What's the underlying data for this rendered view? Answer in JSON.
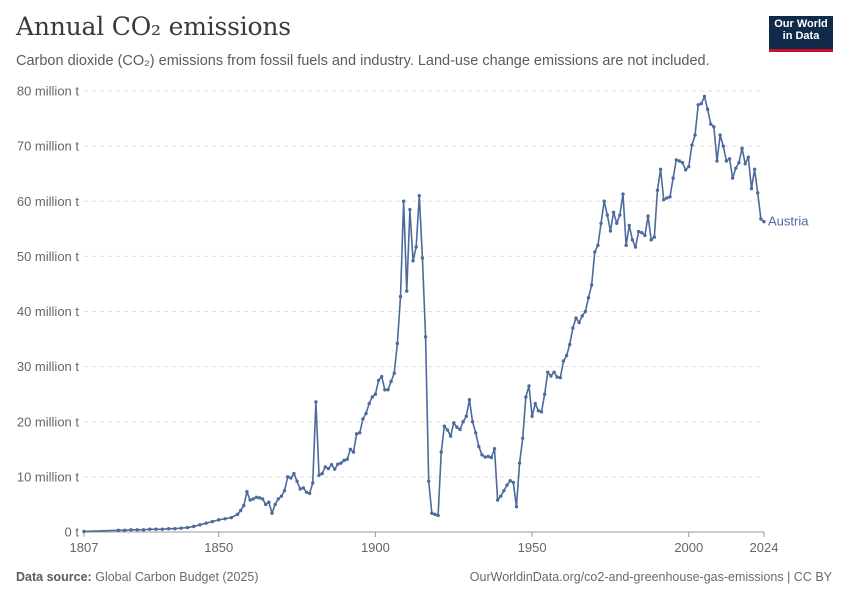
{
  "header": {
    "title": "Annual CO₂ emissions",
    "subtitle": "Carbon dioxide (CO₂) emissions from fossil fuels and industry. Land-use change emissions are not included."
  },
  "logo": {
    "line1": "Our World",
    "line2": "in Data"
  },
  "footer": {
    "source_label": "Data source:",
    "source_value": "Global Carbon Budget (2025)",
    "right": "OurWorldinData.org/co2-and-greenhouse-gas-emissions | CC BY"
  },
  "colors": {
    "series": "#4c6a9c",
    "grid": "#dddddd",
    "text": "#5b5b5b"
  },
  "chart_data": {
    "type": "line",
    "ylim": [
      0,
      80
    ],
    "xlim": [
      1807,
      2024
    ],
    "y_ticks": [
      {
        "v": 0,
        "label": "0 t"
      },
      {
        "v": 10,
        "label": "10 million t"
      },
      {
        "v": 20,
        "label": "20 million t"
      },
      {
        "v": 30,
        "label": "30 million t"
      },
      {
        "v": 40,
        "label": "40 million t"
      },
      {
        "v": 50,
        "label": "50 million t"
      },
      {
        "v": 60,
        "label": "60 million t"
      },
      {
        "v": 70,
        "label": "70 million t"
      },
      {
        "v": 80,
        "label": "80 million t"
      }
    ],
    "x_ticks": [
      1807,
      1850,
      1900,
      1950,
      2000,
      2024
    ],
    "series": [
      {
        "name": "Austria",
        "points": [
          [
            1807,
            0.1
          ],
          [
            1818,
            0.3
          ],
          [
            1820,
            0.3
          ],
          [
            1822,
            0.4
          ],
          [
            1824,
            0.4
          ],
          [
            1826,
            0.4
          ],
          [
            1828,
            0.5
          ],
          [
            1830,
            0.5
          ],
          [
            1832,
            0.5
          ],
          [
            1834,
            0.6
          ],
          [
            1836,
            0.6
          ],
          [
            1838,
            0.7
          ],
          [
            1840,
            0.8
          ],
          [
            1842,
            1.0
          ],
          [
            1844,
            1.3
          ],
          [
            1846,
            1.6
          ],
          [
            1848,
            1.9
          ],
          [
            1850,
            2.2
          ],
          [
            1852,
            2.4
          ],
          [
            1854,
            2.6
          ],
          [
            1856,
            3.2
          ],
          [
            1857,
            3.9
          ],
          [
            1858,
            4.8
          ],
          [
            1859,
            7.3
          ],
          [
            1860,
            5.8
          ],
          [
            1861,
            6.0
          ],
          [
            1862,
            6.3
          ],
          [
            1863,
            6.2
          ],
          [
            1864,
            6.0
          ],
          [
            1865,
            5.0
          ],
          [
            1866,
            5.4
          ],
          [
            1867,
            3.4
          ],
          [
            1868,
            5.0
          ],
          [
            1869,
            6.0
          ],
          [
            1870,
            6.5
          ],
          [
            1871,
            7.5
          ],
          [
            1872,
            10.0
          ],
          [
            1873,
            9.8
          ],
          [
            1874,
            10.6
          ],
          [
            1875,
            9.2
          ],
          [
            1876,
            7.8
          ],
          [
            1877,
            8.0
          ],
          [
            1878,
            7.2
          ],
          [
            1879,
            7.0
          ],
          [
            1880,
            8.9
          ],
          [
            1881,
            23.6
          ],
          [
            1882,
            10.3
          ],
          [
            1883,
            10.6
          ],
          [
            1884,
            11.8
          ],
          [
            1885,
            11.5
          ],
          [
            1886,
            12.2
          ],
          [
            1887,
            11.4
          ],
          [
            1888,
            12.3
          ],
          [
            1889,
            12.5
          ],
          [
            1890,
            13.0
          ],
          [
            1891,
            13.2
          ],
          [
            1892,
            15.0
          ],
          [
            1893,
            14.5
          ],
          [
            1894,
            17.8
          ],
          [
            1895,
            18.0
          ],
          [
            1896,
            20.5
          ],
          [
            1897,
            21.5
          ],
          [
            1898,
            23.3
          ],
          [
            1899,
            24.5
          ],
          [
            1900,
            25.0
          ],
          [
            1901,
            27.5
          ],
          [
            1902,
            28.2
          ],
          [
            1903,
            25.8
          ],
          [
            1904,
            25.8
          ],
          [
            1905,
            27.3
          ],
          [
            1906,
            28.8
          ],
          [
            1907,
            34.2
          ],
          [
            1908,
            42.7
          ],
          [
            1909,
            60.0
          ],
          [
            1910,
            43.7
          ],
          [
            1911,
            58.5
          ],
          [
            1912,
            49.2
          ],
          [
            1913,
            51.7
          ],
          [
            1914,
            61.0
          ],
          [
            1915,
            49.7
          ],
          [
            1916,
            35.4
          ],
          [
            1917,
            9.2
          ],
          [
            1918,
            3.4
          ],
          [
            1919,
            3.2
          ],
          [
            1920,
            3.0
          ],
          [
            1921,
            14.5
          ],
          [
            1922,
            19.2
          ],
          [
            1923,
            18.5
          ],
          [
            1924,
            17.4
          ],
          [
            1925,
            19.8
          ],
          [
            1926,
            19.0
          ],
          [
            1927,
            18.6
          ],
          [
            1928,
            20.0
          ],
          [
            1929,
            21.0
          ],
          [
            1930,
            24.0
          ],
          [
            1931,
            20.0
          ],
          [
            1932,
            18.0
          ],
          [
            1933,
            15.5
          ],
          [
            1934,
            14.0
          ],
          [
            1935,
            13.6
          ],
          [
            1936,
            13.7
          ],
          [
            1937,
            13.5
          ],
          [
            1938,
            15.1
          ],
          [
            1939,
            5.8
          ],
          [
            1940,
            6.5
          ],
          [
            1941,
            7.5
          ],
          [
            1942,
            8.5
          ],
          [
            1943,
            9.3
          ],
          [
            1944,
            9.0
          ],
          [
            1945,
            4.6
          ],
          [
            1946,
            12.5
          ],
          [
            1947,
            17.0
          ],
          [
            1948,
            24.5
          ],
          [
            1949,
            26.5
          ],
          [
            1950,
            21.0
          ],
          [
            1951,
            23.3
          ],
          [
            1952,
            22.0
          ],
          [
            1953,
            21.8
          ],
          [
            1954,
            25.0
          ],
          [
            1955,
            29.0
          ],
          [
            1956,
            28.3
          ],
          [
            1957,
            29.0
          ],
          [
            1958,
            28.1
          ],
          [
            1959,
            28.0
          ],
          [
            1960,
            31.0
          ],
          [
            1961,
            32.0
          ],
          [
            1962,
            34.0
          ],
          [
            1963,
            37.0
          ],
          [
            1964,
            38.8
          ],
          [
            1965,
            38.0
          ],
          [
            1966,
            39.2
          ],
          [
            1967,
            40.0
          ],
          [
            1968,
            42.5
          ],
          [
            1969,
            44.8
          ],
          [
            1970,
            50.8
          ],
          [
            1971,
            52.0
          ],
          [
            1972,
            56.0
          ],
          [
            1973,
            60.0
          ],
          [
            1974,
            57.5
          ],
          [
            1975,
            54.6
          ],
          [
            1976,
            58.0
          ],
          [
            1977,
            56.0
          ],
          [
            1978,
            57.5
          ],
          [
            1979,
            61.3
          ],
          [
            1980,
            52.0
          ],
          [
            1981,
            55.6
          ],
          [
            1982,
            53.0
          ],
          [
            1983,
            51.7
          ],
          [
            1984,
            54.5
          ],
          [
            1985,
            54.3
          ],
          [
            1986,
            53.8
          ],
          [
            1987,
            57.3
          ],
          [
            1988,
            53.0
          ],
          [
            1989,
            53.5
          ],
          [
            1990,
            62.0
          ],
          [
            1991,
            65.8
          ],
          [
            1992,
            60.3
          ],
          [
            1993,
            60.6
          ],
          [
            1994,
            60.8
          ],
          [
            1995,
            64.2
          ],
          [
            1996,
            67.5
          ],
          [
            1997,
            67.3
          ],
          [
            1998,
            67.0
          ],
          [
            1999,
            65.7
          ],
          [
            2000,
            66.3
          ],
          [
            2001,
            70.2
          ],
          [
            2002,
            72.0
          ],
          [
            2003,
            77.5
          ],
          [
            2004,
            77.7
          ],
          [
            2005,
            79.0
          ],
          [
            2006,
            76.7
          ],
          [
            2007,
            74.0
          ],
          [
            2008,
            73.5
          ],
          [
            2009,
            67.3
          ],
          [
            2010,
            72.0
          ],
          [
            2011,
            70.0
          ],
          [
            2012,
            67.3
          ],
          [
            2013,
            67.7
          ],
          [
            2014,
            64.2
          ],
          [
            2015,
            66.0
          ],
          [
            2016,
            67.0
          ],
          [
            2017,
            69.6
          ],
          [
            2018,
            66.8
          ],
          [
            2019,
            68.0
          ],
          [
            2020,
            62.3
          ],
          [
            2021,
            65.8
          ],
          [
            2022,
            61.5
          ],
          [
            2023,
            56.8
          ],
          [
            2024,
            56.3
          ]
        ]
      }
    ]
  }
}
